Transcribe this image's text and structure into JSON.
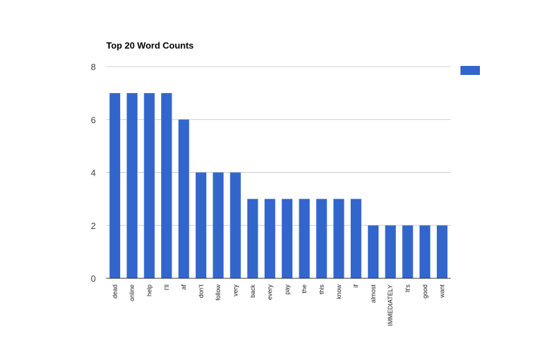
{
  "chart_data": {
    "type": "bar",
    "title": "Top 20 Word Counts",
    "xlabel": "",
    "ylabel": "",
    "categories": [
      "dead",
      "online",
      "help",
      "I'll",
      "af",
      "don't",
      "follow",
      "very",
      "back",
      "every",
      "pay",
      "the",
      "this",
      "know",
      "if",
      "almost",
      "IMMEDIATELY",
      "It's",
      "good",
      "want"
    ],
    "values": [
      7,
      7,
      7,
      7,
      6,
      4,
      4,
      4,
      3,
      3,
      3,
      3,
      3,
      3,
      3,
      2,
      2,
      2,
      2,
      2
    ],
    "ylim": [
      0,
      8
    ],
    "yticks": [
      0,
      2,
      4,
      6,
      8
    ],
    "grid": true,
    "legend": "right",
    "bar_color": "#3366cc",
    "grid_color": "#cccccc"
  }
}
